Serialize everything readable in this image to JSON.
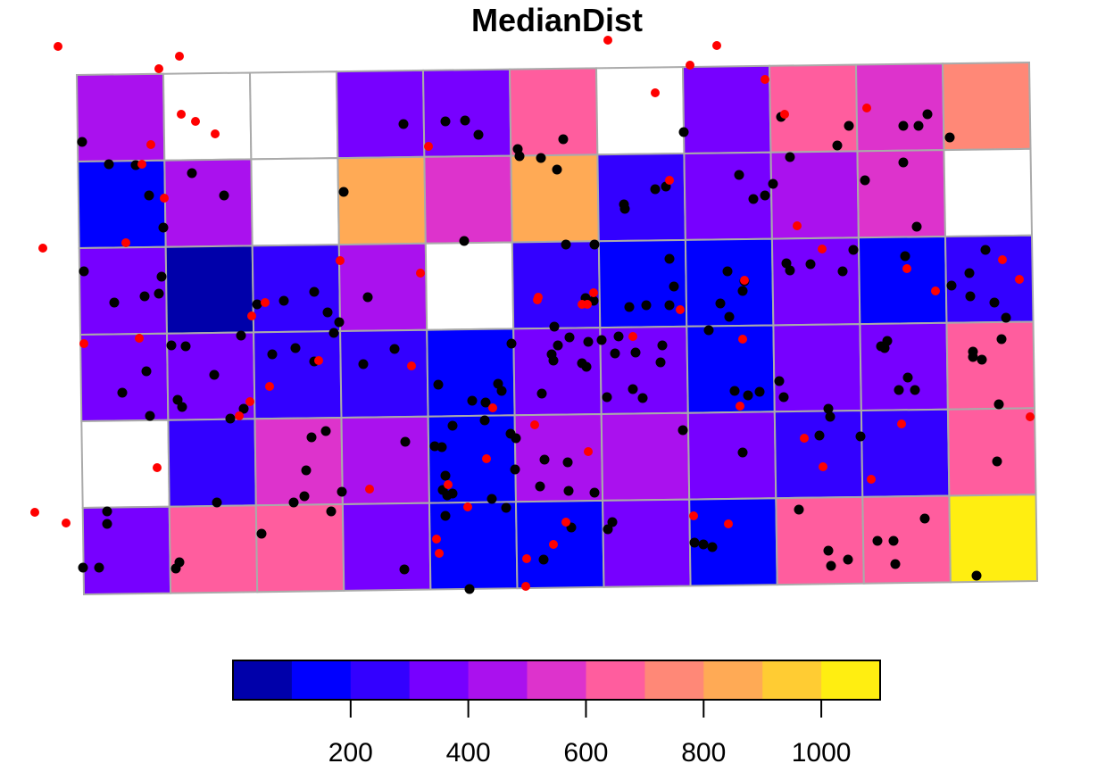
{
  "title": "MedianDist",
  "colors": {
    "grid_line": "#aaaaaa",
    "na_fill": "#ffffff",
    "point_black": "#000000",
    "point_red": "#ff0000"
  },
  "legend": {
    "breaks": [
      0,
      100,
      200,
      300,
      400,
      500,
      600,
      700,
      800,
      900,
      1000,
      1100
    ],
    "colors": [
      "#0000aa",
      "#0000ff",
      "#3300ff",
      "#7700ff",
      "#aa11ee",
      "#dd33cc",
      "#ff5d9e",
      "#ff8877",
      "#ffaa55",
      "#ffcc33",
      "#ffee11"
    ],
    "tick_values": [
      200,
      400,
      600,
      800,
      1000
    ],
    "tick_labels": [
      "200",
      "400",
      "600",
      "800",
      "1000"
    ]
  },
  "grid": {
    "rows": 6,
    "cols": 11,
    "cells": [
      [
        4,
        null,
        null,
        3,
        3,
        6,
        null,
        3,
        6,
        5,
        7
      ],
      [
        1,
        4,
        null,
        8,
        5,
        8,
        2,
        3,
        4,
        5,
        null
      ],
      [
        3,
        0,
        2,
        4,
        null,
        2,
        1,
        1,
        3,
        1,
        2
      ],
      [
        3,
        3,
        2,
        2,
        1,
        3,
        3,
        1,
        3,
        3,
        6
      ],
      [
        null,
        2,
        5,
        4,
        1,
        4,
        4,
        3,
        2,
        2,
        6
      ],
      [
        3,
        6,
        6,
        3,
        1,
        1,
        3,
        1,
        6,
        6,
        10
      ]
    ]
  },
  "chart_data": {
    "type": "choropleth",
    "title": "MedianDist",
    "legend_range": [
      0,
      1100
    ],
    "legend_ticks": [
      200,
      400,
      600,
      800,
      1000
    ],
    "grid_rows": 6,
    "grid_cols": 11
  }
}
